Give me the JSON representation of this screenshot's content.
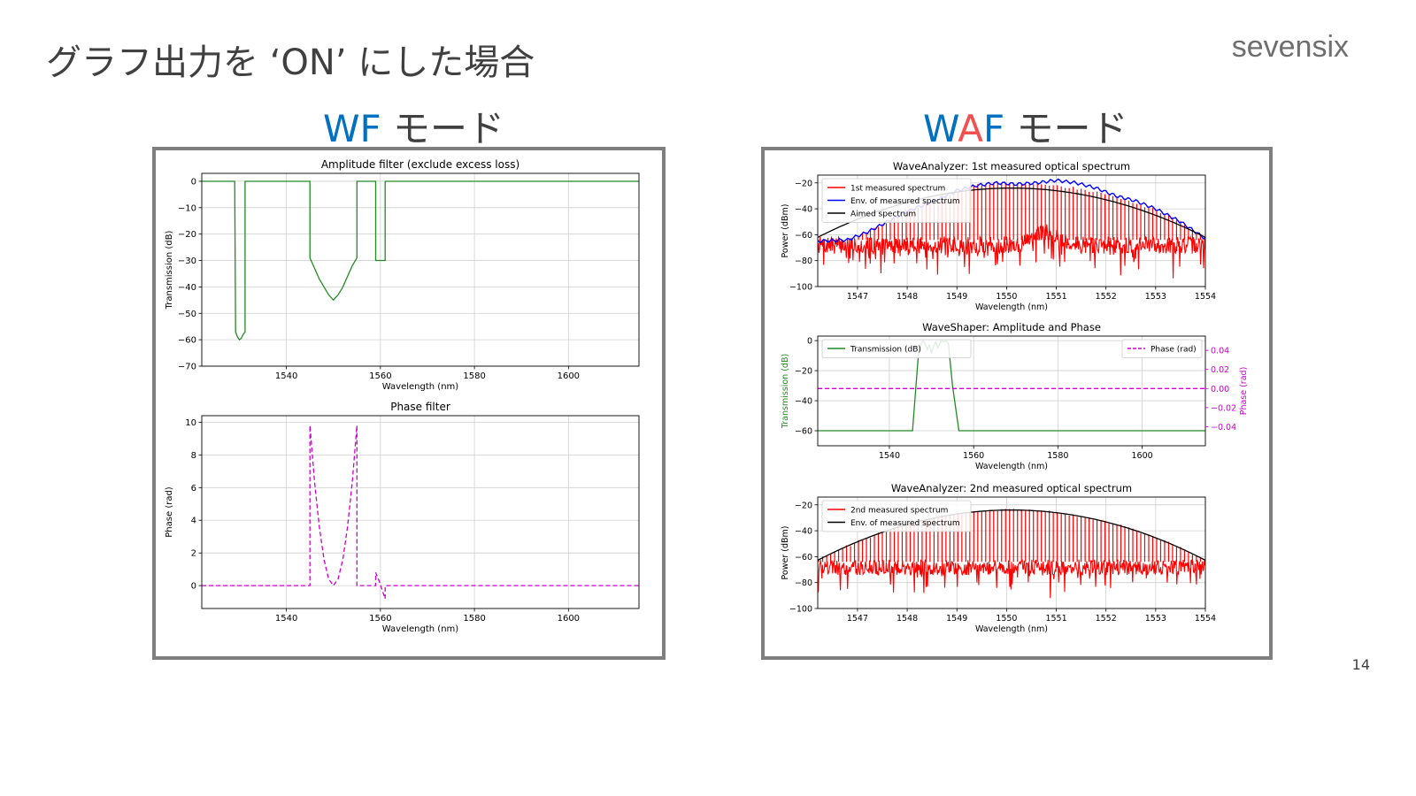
{
  "slide": {
    "title": "グラフ出力を ‘ON’ にした場合",
    "brand": "sevensix",
    "page_number": "14"
  },
  "modes": {
    "wf": {
      "w": "W",
      "f": "F",
      "rest": " モード"
    },
    "waf": {
      "w": "W",
      "a": "A",
      "f": "F",
      "rest": " モード"
    },
    "colors": {
      "blue": "#0070c0",
      "red": "#f0504f",
      "gray": "#404040"
    }
  },
  "chart_data": [
    {
      "id": "amp",
      "type": "line",
      "title": "Amplitude filter (exclude excess loss)",
      "xlabel": "Wavelength (nm)",
      "ylabel": "Transmission (dB)",
      "xlim": [
        1522,
        1615
      ],
      "ylim": [
        -70,
        3
      ],
      "xticks": [
        1540,
        1560,
        1580,
        1600
      ],
      "yticks": [
        0,
        -10,
        -20,
        -30,
        -40,
        -50,
        -60,
        -70
      ],
      "grid": true,
      "series": [
        {
          "color": "#228b22",
          "style": "solid",
          "x": [
            1522,
            1529,
            1529.2,
            1529.6,
            1530,
            1530.4,
            1530.8,
            1531.2,
            1531.2,
            1545,
            1545,
            1546,
            1547,
            1548,
            1549,
            1550,
            1551,
            1552,
            1553,
            1554,
            1555,
            1555,
            1559,
            1559,
            1561,
            1561,
            1615
          ],
          "y": [
            0,
            0,
            -57,
            -59,
            -60,
            -59.5,
            -58,
            -57,
            0,
            0,
            -29,
            -33,
            -37,
            -40,
            -43,
            -45,
            -43,
            -40,
            -36,
            -32,
            -29,
            0,
            0,
            -30,
            -30,
            0,
            0
          ]
        }
      ]
    },
    {
      "id": "phase",
      "type": "line",
      "title": "Phase filter",
      "xlabel": "Wavelength (nm)",
      "ylabel": "Phase (rad)",
      "xlim": [
        1522,
        1615
      ],
      "ylim": [
        -1.4,
        10.4
      ],
      "xticks": [
        1540,
        1560,
        1580,
        1600
      ],
      "yticks": [
        0,
        2,
        4,
        6,
        8,
        10
      ],
      "grid": true,
      "series": [
        {
          "color": "#cc00cc",
          "style": "dashed",
          "x": [
            1522,
            1545,
            1545,
            1546,
            1547,
            1548,
            1549,
            1550,
            1551,
            1552,
            1553,
            1554,
            1555,
            1555,
            1559,
            1559,
            1559.7,
            1560.4,
            1561,
            1561,
            1615
          ],
          "y": [
            0,
            0,
            9.8,
            6.3,
            3.6,
            1.6,
            0.4,
            0,
            0.4,
            1.6,
            3.6,
            6.3,
            9.8,
            0,
            0,
            0.8,
            0.3,
            -0.3,
            -0.8,
            0,
            0
          ]
        }
      ]
    },
    {
      "id": "wa1",
      "type": "line",
      "title": "WaveAnalyzer: 1st measured optical spectrum",
      "xlabel": "Wavelength (nm)",
      "ylabel": "Power (dBm)",
      "xlim": [
        1546.2,
        1554
      ],
      "ylim": [
        -100,
        -14
      ],
      "xticks": [
        1547,
        1548,
        1549,
        1550,
        1551,
        1552,
        1553,
        1554
      ],
      "yticks": [
        -20,
        -40,
        -60,
        -80,
        -100
      ],
      "grid": true,
      "legend": "top-left",
      "comb": {
        "start": 1546.2,
        "end": 1554,
        "spacing": 0.08,
        "floor_mean": -70,
        "floor_spread": 22,
        "floor_bump_center": 1550.8,
        "floor_bump": 10
      },
      "series": [
        {
          "name": "1st measured spectrum",
          "color": "#ff0000",
          "role": "measured"
        },
        {
          "name": "Env. of measured spectrum",
          "color": "#0000ff",
          "role": "envelope",
          "ripple": [
            [
              1546.2,
              -65
            ],
            [
              1546.8,
              -64
            ],
            [
              1547.2,
              -58
            ],
            [
              1548,
              -42
            ],
            [
              1548.6,
              -33
            ],
            [
              1549,
              -26
            ],
            [
              1549.4,
              -22
            ],
            [
              1549.8,
              -20
            ],
            [
              1550.2,
              -21
            ],
            [
              1550.6,
              -20
            ],
            [
              1551,
              -18
            ],
            [
              1551.4,
              -20
            ],
            [
              1551.8,
              -24
            ],
            [
              1552.2,
              -30
            ],
            [
              1552.6,
              -34
            ],
            [
              1553,
              -40
            ],
            [
              1553.5,
              -50
            ],
            [
              1554,
              -63
            ]
          ]
        },
        {
          "name": "Aimed spectrum",
          "color": "#000000",
          "role": "aimed",
          "parabola": {
            "center": 1550.1,
            "peak": -24,
            "curvature": 2.5
          }
        }
      ]
    },
    {
      "id": "ws",
      "type": "line",
      "title": "WaveShaper: Amplitude and Phase",
      "xlabel": "Wavelength (nm)",
      "ylabel": "Transmission (dB)",
      "y2label": "Phase (rad)",
      "xlim": [
        1523,
        1615
      ],
      "ylim": [
        -70,
        3
      ],
      "y2lim": [
        -0.06,
        0.055
      ],
      "xticks": [
        1540,
        1560,
        1580,
        1600
      ],
      "yticks": [
        0,
        -20,
        -40,
        -60
      ],
      "y2ticks": [
        0.04,
        0.02,
        0.0,
        -0.02,
        -0.04
      ],
      "y2ticklabels": [
        "0.04",
        "0.02",
        "0.00",
        "−0.02",
        "−0.04"
      ],
      "grid": true,
      "legend": "top-left",
      "legend2": "top-right",
      "series": [
        {
          "name": "Transmission (dB)",
          "color": "#228b22",
          "style": "solid",
          "axis": "left",
          "x": [
            1523,
            1545.5,
            1547,
            1548,
            1548.5,
            1549,
            1549.5,
            1550,
            1550.5,
            1551,
            1551.5,
            1552,
            1552.5,
            1553,
            1553.5,
            1554,
            1555,
            1556.5,
            1615
          ],
          "y": [
            -60,
            -60,
            -5,
            0,
            -2,
            -6,
            -3,
            -8,
            -4,
            -1,
            -5,
            -2,
            0,
            -1,
            0,
            -2,
            -30,
            -60,
            -60
          ]
        },
        {
          "name": "Phase (rad)",
          "color": "#cc00cc",
          "style": "dashed",
          "axis": "right",
          "x": [
            1523,
            1615
          ],
          "y": [
            0,
            0
          ]
        }
      ]
    },
    {
      "id": "wa2",
      "type": "line",
      "title": "WaveAnalyzer: 2nd measured optical spectrum",
      "xlabel": "Wavelength (nm)",
      "ylabel": "Power (dBm)",
      "xlim": [
        1546.2,
        1554
      ],
      "ylim": [
        -100,
        -14
      ],
      "xticks": [
        1547,
        1548,
        1549,
        1550,
        1551,
        1552,
        1553,
        1554
      ],
      "yticks": [
        -20,
        -40,
        -60,
        -80,
        -100
      ],
      "grid": true,
      "legend": "top-left",
      "comb": {
        "start": 1546.2,
        "end": 1554,
        "spacing": 0.08,
        "floor_mean": -70,
        "floor_spread": 20,
        "floor_bump_center": 1550.1,
        "floor_bump": 0
      },
      "series": [
        {
          "name": "2nd measured spectrum",
          "color": "#ff0000",
          "role": "measured"
        },
        {
          "name": "Env. of measured spectrum",
          "color": "#000000",
          "role": "aimed",
          "parabola": {
            "center": 1550.1,
            "peak": -24,
            "curvature": 2.55
          }
        }
      ]
    }
  ]
}
